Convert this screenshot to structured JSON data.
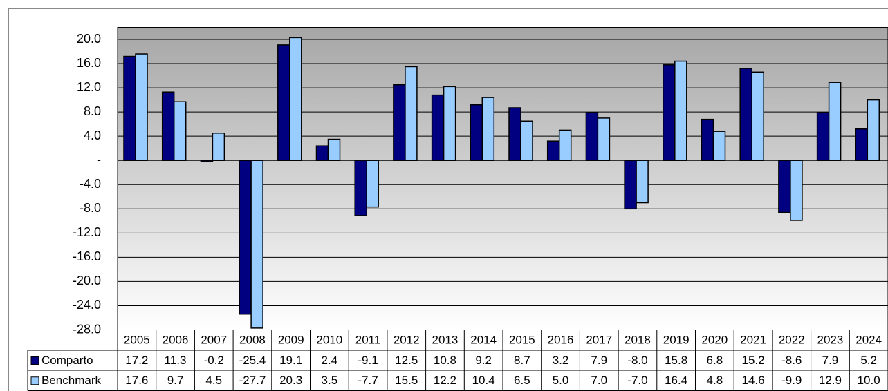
{
  "chart_data": {
    "type": "bar",
    "categories": [
      "2005",
      "2006",
      "2007",
      "2008",
      "2009",
      "2010",
      "2011",
      "2012",
      "2013",
      "2014",
      "2015",
      "2016",
      "2017",
      "2018",
      "2019",
      "2020",
      "2021",
      "2022",
      "2023",
      "2024"
    ],
    "series": [
      {
        "name": "Comparto",
        "color": "#000080",
        "values": [
          17.2,
          11.3,
          -0.2,
          -25.4,
          19.1,
          2.4,
          -9.1,
          12.5,
          10.8,
          9.2,
          8.7,
          3.2,
          7.9,
          -8.0,
          15.8,
          6.8,
          15.2,
          -8.6,
          7.9,
          5.2
        ],
        "value_labels": [
          "17.2",
          "11.3",
          "-0.2",
          "-25.4",
          "19.1",
          "2.4",
          "-9.1",
          "12.5",
          "10.8",
          "9.2",
          "8.7",
          "3.2",
          "7.9",
          "-8.0",
          "15.8",
          "6.8",
          "15.2",
          "-8.6",
          "7.9",
          "5.2"
        ]
      },
      {
        "name": "Benchmark",
        "color": "#99ccff",
        "values": [
          17.6,
          9.7,
          4.5,
          -27.7,
          20.3,
          3.5,
          -7.7,
          15.5,
          12.2,
          10.4,
          6.5,
          5.0,
          7.0,
          -7.0,
          16.4,
          4.8,
          14.6,
          -9.9,
          12.9,
          10.0
        ],
        "value_labels": [
          "17.6",
          "9.7",
          "4.5",
          "-27.7",
          "20.3",
          "3.5",
          "-7.7",
          "15.5",
          "12.2",
          "10.4",
          "6.5",
          "5.0",
          "7.0",
          "-7.0",
          "16.4",
          "4.8",
          "14.6",
          "-9.9",
          "12.9",
          "10.0"
        ]
      }
    ],
    "ylim": [
      -28,
      22
    ],
    "yticks": [
      {
        "value": 20,
        "label": "20.0"
      },
      {
        "value": 16,
        "label": "16.0"
      },
      {
        "value": 12,
        "label": "12.0"
      },
      {
        "value": 8,
        "label": "8.0"
      },
      {
        "value": 4,
        "label": "4.0"
      },
      {
        "value": 0,
        "label": "-"
      },
      {
        "value": -4,
        "label": "-4.0"
      },
      {
        "value": -8,
        "label": "-8.0"
      },
      {
        "value": -12,
        "label": "-12.0"
      },
      {
        "value": -16,
        "label": "-16.0"
      },
      {
        "value": -20,
        "label": "-20.0"
      },
      {
        "value": -24,
        "label": "-24.0"
      },
      {
        "value": -28,
        "label": "-28.0"
      }
    ],
    "grid": true
  }
}
